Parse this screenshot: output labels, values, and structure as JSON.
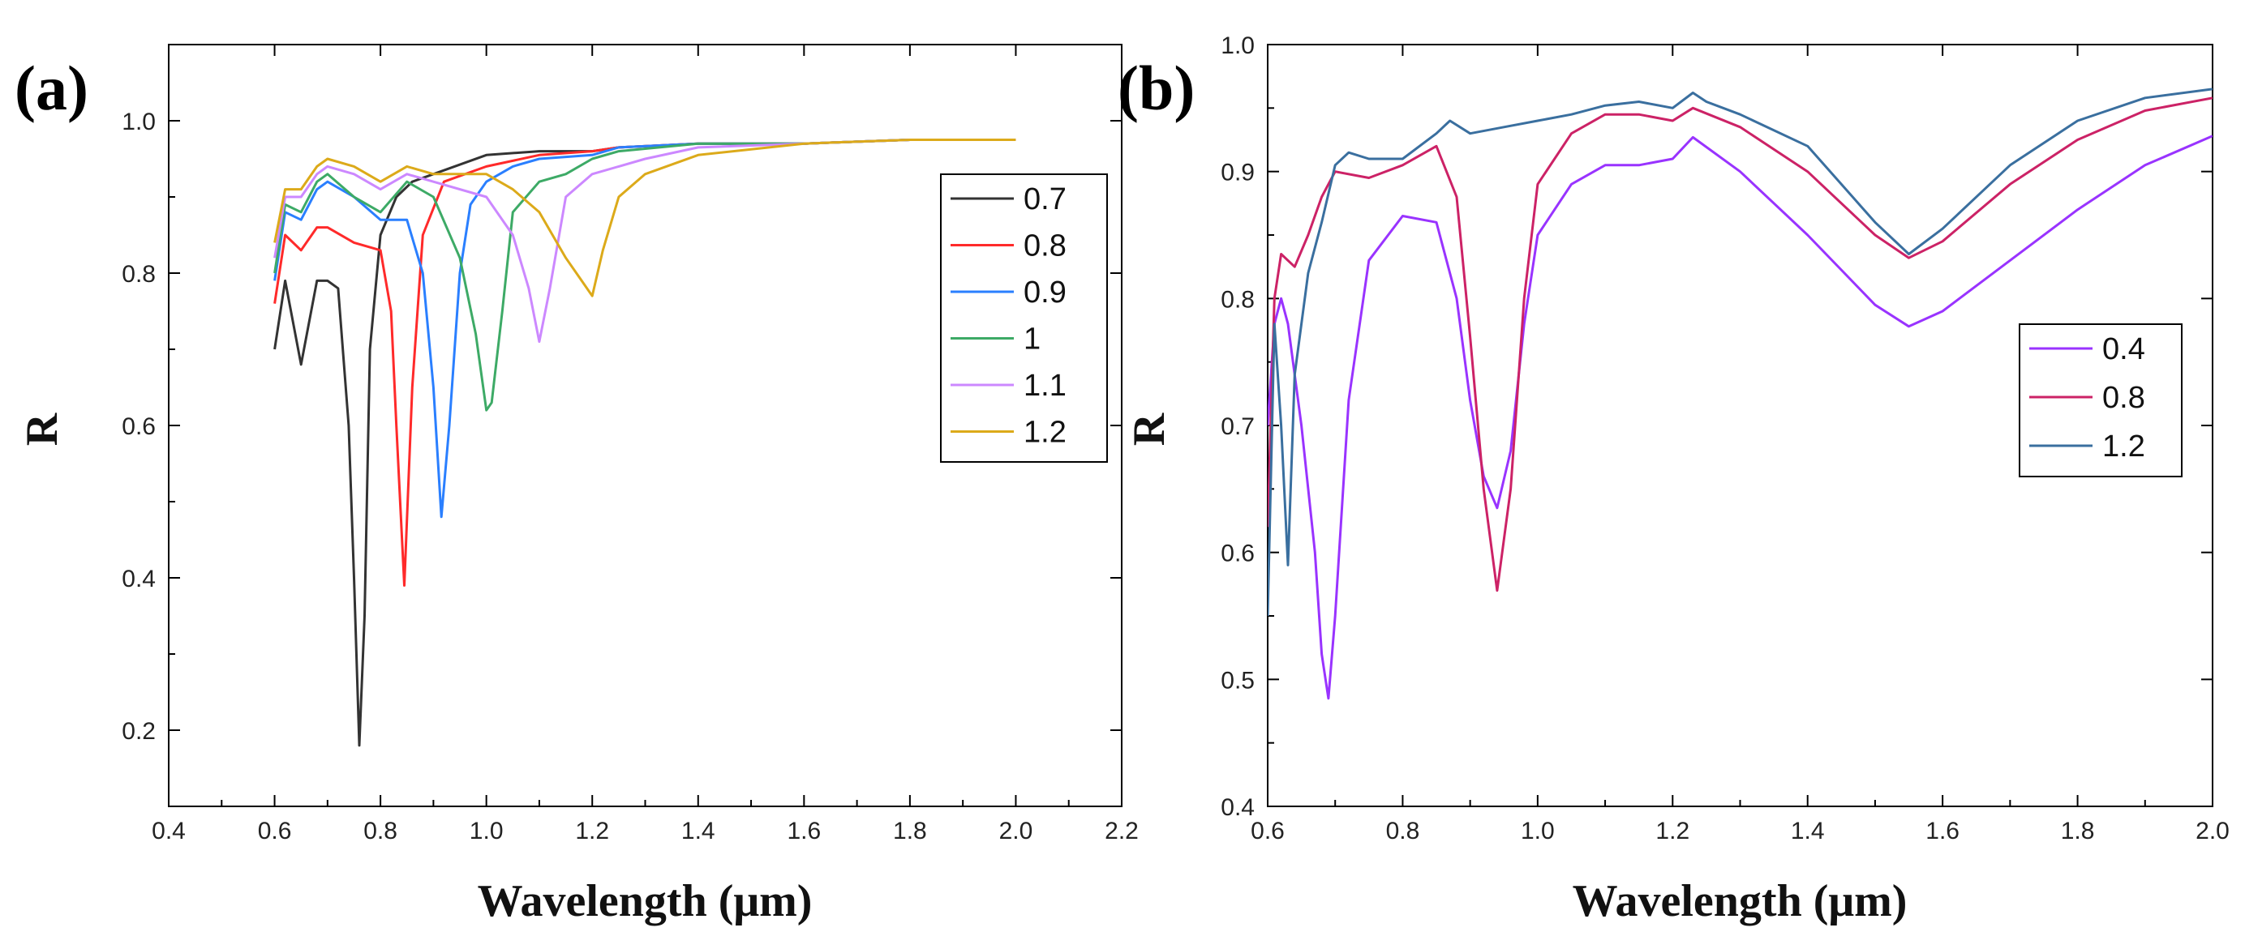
{
  "chart_data": [
    {
      "type": "line",
      "panel_label": "(a)",
      "xlabel": "Wavelength (μm)",
      "ylabel": "R",
      "xlim": [
        0.4,
        2.2
      ],
      "ylim": [
        0.1,
        1.1
      ],
      "xticks": [
        "0.4",
        "0.6",
        "0.8",
        "1.0",
        "1.2",
        "1.4",
        "1.6",
        "1.8",
        "2.0",
        "2.2"
      ],
      "xtick_values": [
        0.4,
        0.6,
        0.8,
        1.0,
        1.2,
        1.4,
        1.6,
        1.8,
        2.0,
        2.2
      ],
      "yticks": [
        "0.2",
        "0.4",
        "0.6",
        "0.8",
        "1.0"
      ],
      "ytick_values": [
        0.2,
        0.4,
        0.6,
        0.8,
        1.0
      ],
      "legend_position": "right",
      "series": [
        {
          "name": "0.7",
          "color": "#333333",
          "x": [
            0.6,
            0.62,
            0.65,
            0.68,
            0.7,
            0.72,
            0.74,
            0.75,
            0.76,
            0.77,
            0.78,
            0.8,
            0.83,
            0.86,
            0.9,
            1.0,
            1.1,
            1.2,
            1.25,
            1.4,
            1.6,
            1.8,
            2.0
          ],
          "y": [
            0.7,
            0.79,
            0.68,
            0.79,
            0.79,
            0.78,
            0.6,
            0.4,
            0.18,
            0.35,
            0.7,
            0.85,
            0.9,
            0.92,
            0.93,
            0.955,
            0.96,
            0.96,
            0.965,
            0.97,
            0.97,
            0.975,
            0.975
          ]
        },
        {
          "name": "0.8",
          "color": "#ff2a2a",
          "x": [
            0.6,
            0.62,
            0.65,
            0.68,
            0.7,
            0.75,
            0.8,
            0.82,
            0.83,
            0.845,
            0.86,
            0.88,
            0.92,
            1.0,
            1.1,
            1.2,
            1.25,
            1.4,
            1.6,
            1.8,
            2.0
          ],
          "y": [
            0.76,
            0.85,
            0.83,
            0.86,
            0.86,
            0.84,
            0.83,
            0.75,
            0.6,
            0.39,
            0.65,
            0.85,
            0.92,
            0.94,
            0.955,
            0.96,
            0.965,
            0.97,
            0.97,
            0.975,
            0.975
          ]
        },
        {
          "name": "0.9",
          "color": "#2a7fff",
          "x": [
            0.6,
            0.62,
            0.65,
            0.68,
            0.7,
            0.75,
            0.8,
            0.85,
            0.88,
            0.9,
            0.915,
            0.93,
            0.95,
            0.97,
            1.0,
            1.05,
            1.1,
            1.2,
            1.25,
            1.4,
            1.6,
            1.8,
            2.0
          ],
          "y": [
            0.79,
            0.88,
            0.87,
            0.91,
            0.92,
            0.9,
            0.87,
            0.87,
            0.8,
            0.65,
            0.48,
            0.6,
            0.8,
            0.89,
            0.92,
            0.94,
            0.95,
            0.955,
            0.965,
            0.97,
            0.97,
            0.975,
            0.975
          ]
        },
        {
          "name": "1",
          "color": "#3daa66",
          "x": [
            0.6,
            0.62,
            0.65,
            0.68,
            0.7,
            0.75,
            0.8,
            0.85,
            0.9,
            0.95,
            0.98,
            1.0,
            1.01,
            1.03,
            1.05,
            1.1,
            1.15,
            1.2,
            1.25,
            1.4,
            1.6,
            1.8,
            2.0
          ],
          "y": [
            0.8,
            0.89,
            0.88,
            0.92,
            0.93,
            0.9,
            0.88,
            0.92,
            0.9,
            0.82,
            0.72,
            0.62,
            0.63,
            0.75,
            0.88,
            0.92,
            0.93,
            0.95,
            0.96,
            0.97,
            0.97,
            0.975,
            0.975
          ]
        },
        {
          "name": "1.1",
          "color": "#cc88ff",
          "x": [
            0.6,
            0.62,
            0.65,
            0.68,
            0.7,
            0.75,
            0.8,
            0.85,
            0.9,
            1.0,
            1.05,
            1.08,
            1.1,
            1.12,
            1.15,
            1.2,
            1.25,
            1.3,
            1.4,
            1.6,
            1.8,
            2.0
          ],
          "y": [
            0.82,
            0.9,
            0.9,
            0.93,
            0.94,
            0.93,
            0.91,
            0.93,
            0.92,
            0.9,
            0.85,
            0.78,
            0.71,
            0.78,
            0.9,
            0.93,
            0.94,
            0.95,
            0.965,
            0.97,
            0.975,
            0.975
          ]
        },
        {
          "name": "1.2",
          "color": "#dcaa1a",
          "x": [
            0.6,
            0.62,
            0.65,
            0.68,
            0.7,
            0.75,
            0.8,
            0.85,
            0.9,
            1.0,
            1.05,
            1.1,
            1.15,
            1.18,
            1.2,
            1.22,
            1.25,
            1.3,
            1.4,
            1.6,
            1.8,
            2.0
          ],
          "y": [
            0.84,
            0.91,
            0.91,
            0.94,
            0.95,
            0.94,
            0.92,
            0.94,
            0.93,
            0.93,
            0.91,
            0.88,
            0.82,
            0.79,
            0.77,
            0.83,
            0.9,
            0.93,
            0.955,
            0.97,
            0.975,
            0.975
          ]
        }
      ]
    },
    {
      "type": "line",
      "panel_label": "(b)",
      "xlabel": "Wavelength (μm)",
      "ylabel": "R",
      "xlim": [
        0.6,
        2.0
      ],
      "ylim": [
        0.4,
        1.0
      ],
      "xticks": [
        "0.6",
        "0.8",
        "1.0",
        "1.2",
        "1.4",
        "1.6",
        "1.8",
        "2.0"
      ],
      "xtick_values": [
        0.6,
        0.8,
        1.0,
        1.2,
        1.4,
        1.6,
        1.8,
        2.0
      ],
      "yticks": [
        "0.4",
        "0.5",
        "0.6",
        "0.7",
        "0.8",
        "0.9",
        "1.0"
      ],
      "ytick_values": [
        0.4,
        0.5,
        0.6,
        0.7,
        0.8,
        0.9,
        1.0
      ],
      "legend_position": "right",
      "series": [
        {
          "name": "0.4",
          "color": "#9933ff",
          "x": [
            0.6,
            0.61,
            0.62,
            0.63,
            0.65,
            0.67,
            0.68,
            0.69,
            0.7,
            0.72,
            0.75,
            0.8,
            0.85,
            0.88,
            0.9,
            0.92,
            0.94,
            0.96,
            0.98,
            1.0,
            1.05,
            1.1,
            1.15,
            1.2,
            1.23,
            1.3,
            1.4,
            1.5,
            1.55,
            1.6,
            1.7,
            1.8,
            1.9,
            2.0
          ],
          "y": [
            0.7,
            0.78,
            0.8,
            0.78,
            0.7,
            0.6,
            0.52,
            0.485,
            0.55,
            0.72,
            0.83,
            0.865,
            0.86,
            0.8,
            0.72,
            0.66,
            0.635,
            0.68,
            0.78,
            0.85,
            0.89,
            0.905,
            0.905,
            0.91,
            0.927,
            0.9,
            0.85,
            0.795,
            0.778,
            0.79,
            0.83,
            0.87,
            0.905,
            0.928
          ]
        },
        {
          "name": "0.8",
          "color": "#cc2266",
          "x": [
            0.6,
            0.61,
            0.62,
            0.64,
            0.66,
            0.68,
            0.7,
            0.75,
            0.8,
            0.85,
            0.88,
            0.9,
            0.92,
            0.94,
            0.96,
            0.98,
            1.0,
            1.05,
            1.1,
            1.15,
            1.2,
            1.23,
            1.3,
            1.4,
            1.5,
            1.55,
            1.6,
            1.7,
            1.8,
            1.9,
            2.0
          ],
          "y": [
            0.62,
            0.8,
            0.835,
            0.825,
            0.85,
            0.88,
            0.9,
            0.895,
            0.905,
            0.92,
            0.88,
            0.77,
            0.65,
            0.57,
            0.65,
            0.8,
            0.89,
            0.93,
            0.945,
            0.945,
            0.94,
            0.95,
            0.935,
            0.9,
            0.85,
            0.832,
            0.845,
            0.89,
            0.925,
            0.948,
            0.958
          ]
        },
        {
          "name": "1.2",
          "color": "#3a6f9f",
          "x": [
            0.6,
            0.61,
            0.62,
            0.63,
            0.64,
            0.66,
            0.68,
            0.7,
            0.72,
            0.75,
            0.8,
            0.85,
            0.87,
            0.9,
            0.95,
            1.0,
            1.05,
            1.1,
            1.15,
            1.2,
            1.23,
            1.25,
            1.3,
            1.4,
            1.5,
            1.55,
            1.6,
            1.7,
            1.8,
            1.9,
            2.0
          ],
          "y": [
            0.55,
            0.78,
            0.7,
            0.59,
            0.74,
            0.82,
            0.86,
            0.905,
            0.915,
            0.91,
            0.91,
            0.93,
            0.94,
            0.93,
            0.935,
            0.94,
            0.945,
            0.952,
            0.955,
            0.95,
            0.962,
            0.955,
            0.945,
            0.92,
            0.86,
            0.835,
            0.855,
            0.905,
            0.94,
            0.958,
            0.965
          ]
        }
      ]
    }
  ]
}
